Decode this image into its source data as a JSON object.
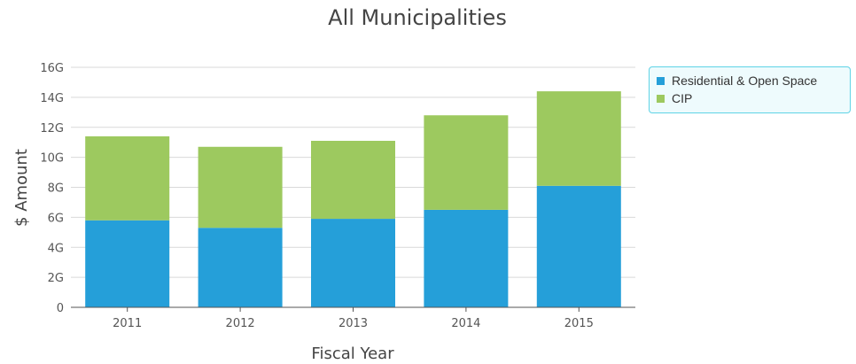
{
  "chart_data": {
    "type": "bar",
    "stacked": true,
    "title": "All Municipalities",
    "xlabel": "Fiscal Year",
    "ylabel": "$ Amount",
    "categories": [
      "2011",
      "2012",
      "2013",
      "2014",
      "2015"
    ],
    "series": [
      {
        "name": "Residential & Open Space",
        "color": "#259fd9",
        "values": [
          5.8,
          5.3,
          5.9,
          6.5,
          8.1
        ]
      },
      {
        "name": "CIP",
        "color": "#9dc95f",
        "values": [
          5.6,
          5.4,
          5.2,
          6.3,
          6.3
        ]
      }
    ],
    "ylim": [
      0,
      16
    ],
    "yticks": [
      0,
      2,
      4,
      6,
      8,
      10,
      12,
      14,
      16
    ],
    "ytick_labels": [
      "0",
      "2G",
      "4G",
      "6G",
      "8G",
      "10G",
      "12G",
      "14G",
      "16G"
    ],
    "grid": true,
    "legend_position": "right"
  }
}
